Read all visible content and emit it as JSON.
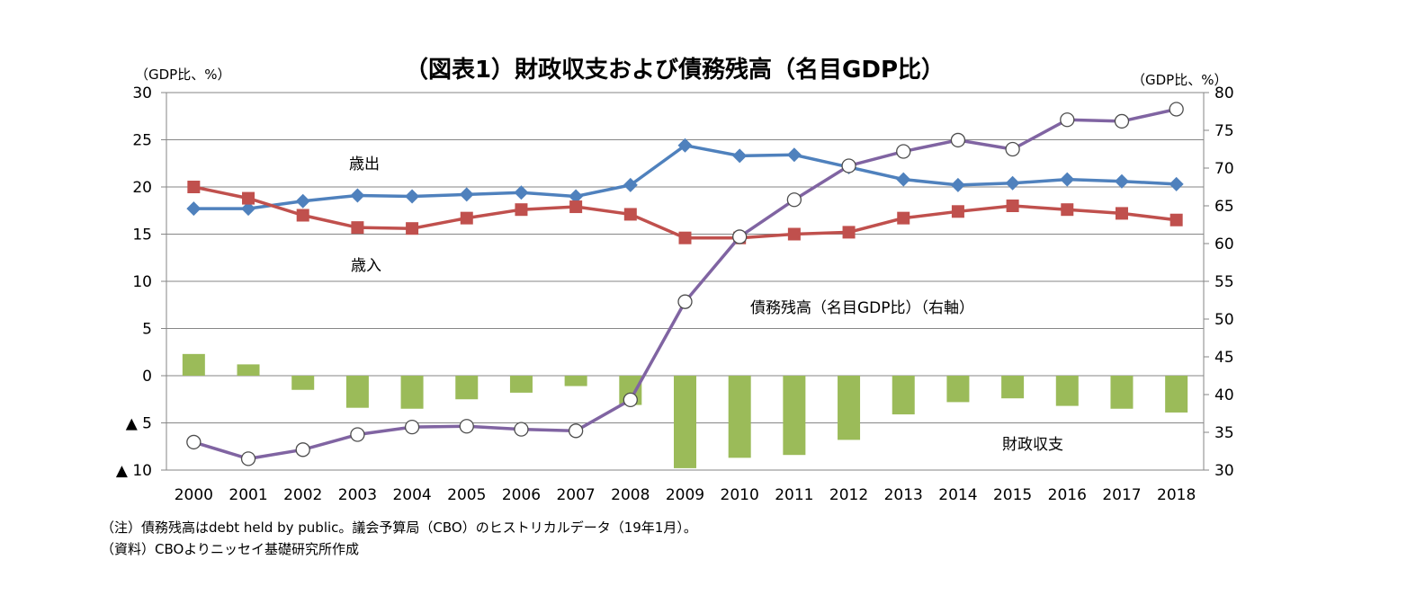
{
  "chart_data": {
    "type": "bar+line",
    "title": "（図表1）財政収支および債務残高（名目GDP比）",
    "left_axis": {
      "unit": "（GDP比、%）",
      "ylim": [
        -10,
        30
      ],
      "ticks": [
        30,
        25,
        20,
        15,
        10,
        5,
        0,
        -5,
        -10
      ],
      "tick_labels": [
        "30",
        "25",
        "20",
        "15",
        "10",
        "5",
        "0",
        "▲ 5",
        "▲ 10"
      ]
    },
    "right_axis": {
      "unit": "（GDP比、%）",
      "ylim": [
        30,
        80
      ],
      "ticks": [
        80,
        75,
        70,
        65,
        60,
        55,
        50,
        45,
        40,
        35,
        30
      ],
      "tick_labels": [
        "80",
        "75",
        "70",
        "65",
        "60",
        "55",
        "50",
        "45",
        "40",
        "35",
        "30"
      ]
    },
    "categories": [
      "2000",
      "2001",
      "2002",
      "2003",
      "2004",
      "2005",
      "2006",
      "2007",
      "2008",
      "2009",
      "2010",
      "2011",
      "2012",
      "2013",
      "2014",
      "2015",
      "2016",
      "2017",
      "2018"
    ],
    "series": [
      {
        "name": "財政収支",
        "type": "bar",
        "axis": "left",
        "color": "#9bbb59",
        "values": [
          2.3,
          1.2,
          -1.5,
          -3.4,
          -3.5,
          -2.5,
          -1.8,
          -1.1,
          -3.1,
          -9.8,
          -8.7,
          -8.4,
          -6.8,
          -4.1,
          -2.8,
          -2.4,
          -3.2,
          -3.5,
          -3.9
        ]
      },
      {
        "name": "歳出",
        "type": "line",
        "axis": "left",
        "color": "#4f81bd",
        "marker": "diamond",
        "values": [
          17.7,
          17.7,
          18.5,
          19.1,
          19.0,
          19.2,
          19.4,
          19.0,
          20.2,
          24.4,
          23.3,
          23.4,
          22.1,
          20.8,
          20.2,
          20.4,
          20.8,
          20.6,
          20.3
        ]
      },
      {
        "name": "歳入",
        "type": "line",
        "axis": "left",
        "color": "#c0504d",
        "marker": "square",
        "values": [
          20.0,
          18.8,
          17.0,
          15.7,
          15.6,
          16.7,
          17.6,
          17.9,
          17.1,
          14.6,
          14.6,
          15.0,
          15.2,
          16.7,
          17.4,
          18.0,
          17.6,
          17.2,
          16.5
        ]
      },
      {
        "name": "債務残高（名目GDP比）（右軸）",
        "type": "line",
        "axis": "right",
        "color": "#8064a2",
        "marker": "circle",
        "values": [
          33.7,
          31.5,
          32.7,
          34.7,
          35.7,
          35.8,
          35.4,
          35.2,
          39.3,
          52.3,
          60.9,
          65.8,
          70.3,
          72.2,
          73.7,
          72.5,
          76.4,
          76.2,
          77.8
        ]
      }
    ],
    "labels": {
      "outlays": "歳出",
      "revenues": "歳入",
      "debt": "債務残高（名目GDP比）（右軸）",
      "balance": "財政収支"
    }
  },
  "notes": {
    "note1": "（注）債務残高はdebt held by public。議会予算局（CBO）のヒストリカルデータ（19年1月）。",
    "note2": "（資料）CBOよりニッセイ基礎研究所作成"
  }
}
